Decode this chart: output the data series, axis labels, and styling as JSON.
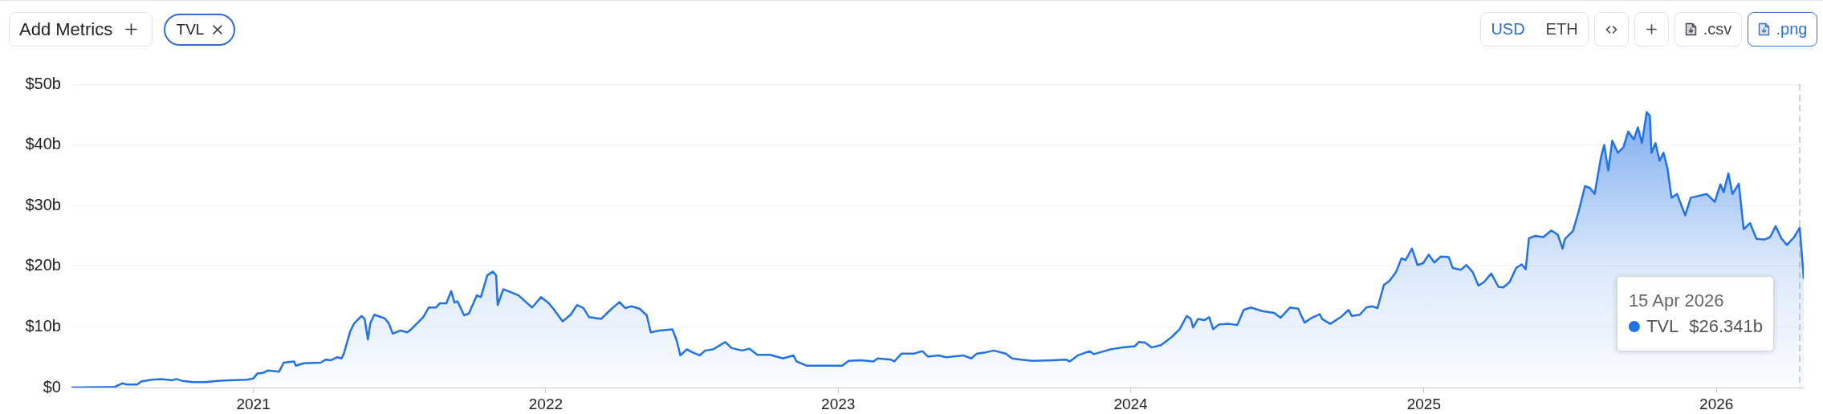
{
  "chart_data": {
    "type": "area",
    "x": [
      "2020-05-19",
      "2020-07-12",
      "2020-07-22",
      "2020-07-27",
      "2020-08-09",
      "2020-08-14",
      "2020-08-27",
      "2020-09-08",
      "2020-09-22",
      "2020-09-27",
      "2020-10-04",
      "2020-10-18",
      "2020-11-02",
      "2020-11-17",
      "2020-12-02",
      "2020-12-24",
      "2021-01-01",
      "2021-01-06",
      "2021-01-13",
      "2021-01-19",
      "2021-02-02",
      "2021-02-08",
      "2021-02-21",
      "2021-02-23",
      "2021-03-05",
      "2021-03-26",
      "2021-04-01",
      "2021-04-08",
      "2021-04-16",
      "2021-04-21",
      "2021-04-24",
      "2021-05-02",
      "2021-05-07",
      "2021-05-16",
      "2021-05-20",
      "2021-05-24",
      "2021-05-27",
      "2021-06-01",
      "2021-06-14",
      "2021-06-19",
      "2021-06-24",
      "2021-07-04",
      "2021-07-12",
      "2021-07-17",
      "2021-08-01",
      "2021-08-08",
      "2021-08-17",
      "2021-08-22",
      "2021-08-30",
      "2021-09-05",
      "2021-09-09",
      "2021-09-13",
      "2021-09-21",
      "2021-09-27",
      "2021-10-07",
      "2021-10-12",
      "2021-10-20",
      "2021-10-27",
      "2021-10-31",
      "2021-11-02",
      "2021-11-09",
      "2021-11-17",
      "2021-11-28",
      "2021-12-08",
      "2021-12-15",
      "2021-12-26",
      "2022-01-04",
      "2022-01-11",
      "2022-01-22",
      "2022-02-01",
      "2022-02-09",
      "2022-02-17",
      "2022-02-24",
      "2022-03-11",
      "2022-03-21",
      "2022-04-03",
      "2022-04-10",
      "2022-04-18",
      "2022-04-28",
      "2022-05-07",
      "2022-05-12",
      "2022-05-23",
      "2022-06-08",
      "2022-06-13",
      "2022-06-18",
      "2022-06-26",
      "2022-07-03",
      "2022-07-12",
      "2022-07-19",
      "2022-07-29",
      "2022-08-13",
      "2022-08-21",
      "2022-09-03",
      "2022-09-12",
      "2022-09-22",
      "2022-10-08",
      "2022-10-24",
      "2022-11-06",
      "2022-11-10",
      "2022-11-23",
      "2022-12-13",
      "2023-01-06",
      "2023-01-14",
      "2023-01-29",
      "2023-02-14",
      "2023-02-19",
      "2023-03-08",
      "2023-03-12",
      "2023-03-21",
      "2023-04-06",
      "2023-04-16",
      "2023-04-23",
      "2023-05-06",
      "2023-05-16",
      "2023-06-06",
      "2023-06-16",
      "2023-06-23",
      "2023-07-04",
      "2023-07-14",
      "2023-07-29",
      "2023-08-06",
      "2023-08-17",
      "2023-09-01",
      "2023-09-26",
      "2023-10-12",
      "2023-10-17",
      "2023-10-27",
      "2023-11-11",
      "2023-11-16",
      "2023-12-07",
      "2023-12-22",
      "2024-01-06",
      "2024-01-11",
      "2024-01-19",
      "2024-01-27",
      "2024-02-08",
      "2024-02-21",
      "2024-03-02",
      "2024-03-11",
      "2024-03-16",
      "2024-03-19",
      "2024-03-25",
      "2024-04-02",
      "2024-04-08",
      "2024-04-13",
      "2024-04-20",
      "2024-05-03",
      "2024-05-13",
      "2024-05-21",
      "2024-05-30",
      "2024-06-13",
      "2024-06-28",
      "2024-07-06",
      "2024-07-18",
      "2024-07-28",
      "2024-08-05",
      "2024-08-14",
      "2024-08-24",
      "2024-08-27",
      "2024-09-06",
      "2024-09-19",
      "2024-09-29",
      "2024-10-03",
      "2024-10-13",
      "2024-10-21",
      "2024-10-28",
      "2024-11-04",
      "2024-11-12",
      "2024-11-19",
      "2024-11-27",
      "2024-12-04",
      "2024-12-09",
      "2024-12-17",
      "2024-12-24",
      "2024-12-31",
      "2025-01-07",
      "2025-01-14",
      "2025-01-22",
      "2025-02-01",
      "2025-02-06",
      "2025-02-16",
      "2025-02-23",
      "2025-03-03",
      "2025-03-10",
      "2025-03-17",
      "2025-03-26",
      "2025-04-04",
      "2025-04-10",
      "2025-04-18",
      "2025-04-26",
      "2025-05-03",
      "2025-05-08",
      "2025-05-12",
      "2025-05-20",
      "2025-05-30",
      "2025-06-09",
      "2025-06-17",
      "2025-06-23",
      "2025-06-26",
      "2025-07-06",
      "2025-07-13",
      "2025-07-21",
      "2025-07-27",
      "2025-08-02",
      "2025-08-10",
      "2025-08-14",
      "2025-08-19",
      "2025-08-24",
      "2025-08-31",
      "2025-09-07",
      "2025-09-13",
      "2025-09-20",
      "2025-09-25",
      "2025-09-30",
      "2025-10-06",
      "2025-10-10",
      "2025-10-12",
      "2025-10-17",
      "2025-10-22",
      "2025-10-27",
      "2025-11-01",
      "2025-11-06",
      "2025-11-13",
      "2025-11-23",
      "2025-11-30",
      "2025-12-10",
      "2025-12-20",
      "2025-12-30",
      "2026-01-06",
      "2026-01-10",
      "2026-01-16",
      "2026-01-21",
      "2026-01-29",
      "2026-02-04",
      "2026-02-12",
      "2026-02-20",
      "2026-03-02",
      "2026-03-09",
      "2026-03-16",
      "2026-03-23",
      "2026-03-30",
      "2026-04-08",
      "2026-04-15",
      "2026-04-20"
    ],
    "series": [
      {
        "name": "TVL",
        "color": "#2172e5",
        "values": [
          0,
          0.1,
          0.7,
          0.5,
          0.5,
          1.0,
          1.3,
          1.4,
          1.2,
          1.4,
          1.1,
          0.9,
          0.9,
          1.1,
          1.2,
          1.3,
          1.5,
          2.3,
          2.4,
          2.8,
          2.6,
          4.1,
          4.3,
          3.6,
          4.0,
          4.1,
          4.6,
          4.5,
          5.0,
          4.8,
          5.6,
          9.3,
          10.6,
          11.8,
          11.3,
          7.9,
          10.6,
          12.0,
          11.4,
          10.6,
          8.9,
          9.4,
          9.1,
          9.6,
          11.6,
          13.2,
          13.2,
          13.9,
          13.9,
          15.9,
          14.0,
          14.2,
          11.9,
          12.2,
          15.2,
          14.9,
          18.5,
          19.1,
          18.5,
          13.6,
          16.2,
          15.8,
          15.2,
          14.0,
          13.2,
          14.9,
          14.0,
          12.9,
          10.9,
          12.0,
          13.6,
          13.1,
          11.6,
          11.3,
          12.6,
          14.1,
          13.1,
          13.4,
          13.0,
          11.9,
          9.1,
          9.4,
          9.6,
          7.9,
          5.3,
          6.3,
          5.8,
          5.3,
          6.1,
          6.3,
          7.5,
          6.5,
          6.1,
          6.4,
          5.4,
          5.4,
          4.8,
          5.3,
          4.3,
          3.6,
          3.6,
          3.6,
          4.4,
          4.5,
          4.3,
          4.8,
          4.6,
          4.3,
          5.6,
          5.6,
          6.0,
          5.1,
          5.3,
          5.0,
          5.3,
          4.8,
          5.6,
          5.8,
          6.1,
          5.6,
          4.8,
          4.6,
          4.4,
          4.5,
          4.6,
          4.3,
          5.3,
          6.0,
          5.5,
          6.3,
          6.6,
          6.8,
          7.5,
          7.4,
          6.6,
          7.0,
          8.3,
          9.6,
          11.8,
          11.3,
          9.9,
          11.3,
          11.1,
          11.6,
          9.6,
          10.4,
          10.5,
          10.3,
          12.8,
          13.2,
          12.6,
          12.3,
          11.5,
          13.2,
          13.0,
          10.7,
          11.5,
          12.1,
          11.3,
          10.5,
          11.6,
          12.8,
          11.8,
          12.0,
          13.2,
          13.4,
          13.1,
          16.9,
          17.6,
          19.0,
          21.3,
          21.0,
          22.9,
          20.2,
          20.5,
          21.9,
          20.6,
          21.6,
          21.5,
          19.7,
          19.4,
          20.2,
          19.0,
          16.8,
          17.4,
          18.8,
          16.6,
          16.5,
          17.4,
          19.7,
          20.3,
          19.5,
          24.6,
          25.0,
          24.8,
          25.9,
          25.2,
          22.9,
          24.5,
          25.8,
          29.0,
          33.2,
          32.9,
          31.9,
          38.0,
          40.0,
          35.8,
          40.7,
          38.7,
          39.6,
          42.2,
          40.9,
          42.9,
          40.3,
          45.4,
          44.8,
          38.7,
          40.3,
          37.4,
          38.7,
          36.1,
          31.3,
          31.9,
          28.4,
          31.3,
          31.6,
          31.9,
          30.6,
          33.5,
          32.2,
          35.3,
          31.9,
          33.6,
          26.1,
          27.1,
          24.5,
          24.4,
          24.8,
          26.6,
          24.6,
          23.5,
          24.8,
          26.341,
          18.0
        ]
      }
    ],
    "xlim": [
      "2020-05-19",
      "2026-04-20"
    ],
    "xticks": [
      "2021",
      "2022",
      "2023",
      "2024",
      "2025",
      "2026"
    ],
    "ylim": [
      0,
      50
    ],
    "yticks": [
      {
        "value": 0,
        "label": "$0"
      },
      {
        "value": 10,
        "label": "$10b"
      },
      {
        "value": 20,
        "label": "$20b"
      },
      {
        "value": 30,
        "label": "$30b"
      },
      {
        "value": 40,
        "label": "$40b"
      },
      {
        "value": 50,
        "label": "$50b"
      }
    ],
    "grid": "y",
    "ref_lines": [
      {
        "axis": "x",
        "value": "2026-04-15",
        "color": "#b4b4b4",
        "line_style": "dashed"
      }
    ],
    "annotations": [
      "Add Metrics",
      "USD",
      "ETH",
      ".csv",
      ".png",
      "15 Apr 2026",
      "$26.341b"
    ]
  }
}
